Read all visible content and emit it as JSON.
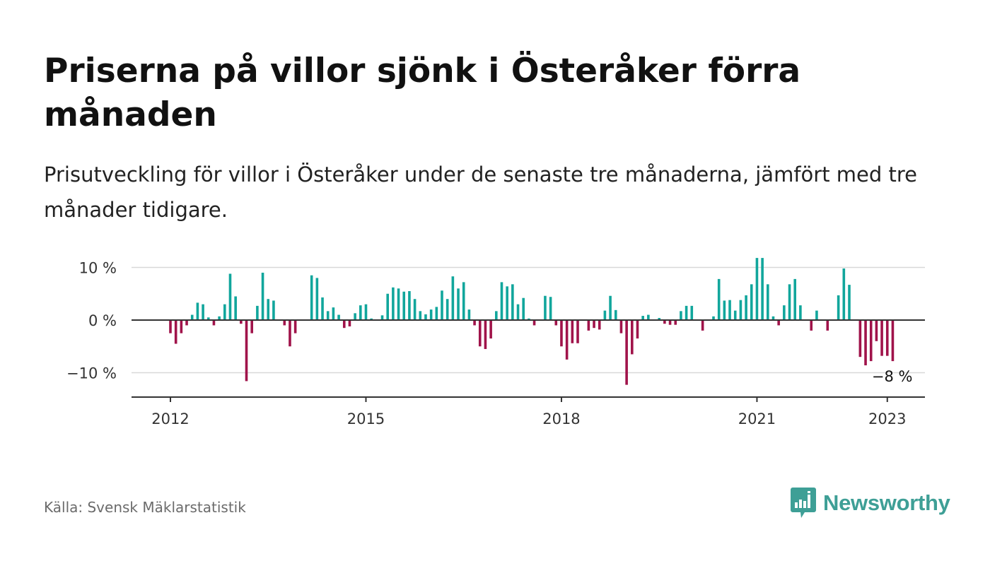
{
  "title": "Priserna på villor sjönk i Österåker förra månaden",
  "subtitle": "Prisutveckling för villor i Österåker under de senaste tre månaderna, jämfört med tre månader tidigare.",
  "source": "Källa: Svensk Mäklarstatistik",
  "brand": {
    "name": "Newsworthy",
    "color": "#3e9f96"
  },
  "colors": {
    "positive": "#11a69c",
    "negative": "#a0134a",
    "grid": "#d8d8d8",
    "axis": "#333333"
  },
  "chart_data": {
    "type": "bar",
    "x_ticks": [
      {
        "label": "2012",
        "value": "2012-01"
      },
      {
        "label": "2015",
        "value": "2015-01"
      },
      {
        "label": "2018",
        "value": "2018-01"
      },
      {
        "label": "2021",
        "value": "2021-01"
      },
      {
        "label": "2023",
        "value": "2023-01"
      }
    ],
    "y_ticks": [
      {
        "label": "10 %",
        "value": 10
      },
      {
        "label": "0 %",
        "value": 0
      },
      {
        "label": "−10 %",
        "value": -10
      }
    ],
    "ylim": [
      -14.5,
      11
    ],
    "xlim": [
      "2011-09",
      "2023-07"
    ],
    "grid": true,
    "last_value_label": "−8 %",
    "series": [
      {
        "unit": "%",
        "points": [
          {
            "x": "2012-01",
            "y": -2.5
          },
          {
            "x": "2012-02",
            "y": -4.5
          },
          {
            "x": "2012-03",
            "y": -2.5
          },
          {
            "x": "2012-04",
            "y": -1
          },
          {
            "x": "2012-05",
            "y": 1
          },
          {
            "x": "2012-06",
            "y": 3.3
          },
          {
            "x": "2012-07",
            "y": 3
          },
          {
            "x": "2012-08",
            "y": 0.5
          },
          {
            "x": "2012-09",
            "y": -1
          },
          {
            "x": "2012-10",
            "y": 0.7
          },
          {
            "x": "2012-11",
            "y": 3
          },
          {
            "x": "2012-12",
            "y": 8.8
          },
          {
            "x": "2013-01",
            "y": 4.5
          },
          {
            "x": "2013-02",
            "y": -0.7
          },
          {
            "x": "2013-03",
            "y": -11.6
          },
          {
            "x": "2013-04",
            "y": -2.5
          },
          {
            "x": "2013-05",
            "y": 2.7
          },
          {
            "x": "2013-06",
            "y": 9
          },
          {
            "x": "2013-07",
            "y": 4
          },
          {
            "x": "2013-08",
            "y": 3.7
          },
          {
            "x": "2013-10",
            "y": -1
          },
          {
            "x": "2013-11",
            "y": -5
          },
          {
            "x": "2013-12",
            "y": -2.5
          },
          {
            "x": "2014-03",
            "y": 8.5
          },
          {
            "x": "2014-04",
            "y": 8
          },
          {
            "x": "2014-05",
            "y": 4.3
          },
          {
            "x": "2014-06",
            "y": 1.7
          },
          {
            "x": "2014-07",
            "y": 2.4
          },
          {
            "x": "2014-08",
            "y": 1
          },
          {
            "x": "2014-09",
            "y": -1.5
          },
          {
            "x": "2014-10",
            "y": -1.2
          },
          {
            "x": "2014-11",
            "y": 1.3
          },
          {
            "x": "2014-12",
            "y": 2.8
          },
          {
            "x": "2015-01",
            "y": 3
          },
          {
            "x": "2015-02",
            "y": 0.3
          },
          {
            "x": "2015-04",
            "y": 0.9
          },
          {
            "x": "2015-05",
            "y": 5
          },
          {
            "x": "2015-06",
            "y": 6.2
          },
          {
            "x": "2015-07",
            "y": 6
          },
          {
            "x": "2015-08",
            "y": 5.4
          },
          {
            "x": "2015-09",
            "y": 5.5
          },
          {
            "x": "2015-10",
            "y": 4
          },
          {
            "x": "2015-11",
            "y": 1.7
          },
          {
            "x": "2015-12",
            "y": 1.1
          },
          {
            "x": "2016-01",
            "y": 2
          },
          {
            "x": "2016-02",
            "y": 2.5
          },
          {
            "x": "2016-03",
            "y": 5.6
          },
          {
            "x": "2016-04",
            "y": 4
          },
          {
            "x": "2016-05",
            "y": 8.3
          },
          {
            "x": "2016-06",
            "y": 6
          },
          {
            "x": "2016-07",
            "y": 7.2
          },
          {
            "x": "2016-08",
            "y": 2
          },
          {
            "x": "2016-09",
            "y": -1
          },
          {
            "x": "2016-10",
            "y": -5
          },
          {
            "x": "2016-11",
            "y": -5.5
          },
          {
            "x": "2016-12",
            "y": -3.5
          },
          {
            "x": "2017-01",
            "y": 1.7
          },
          {
            "x": "2017-02",
            "y": 7.2
          },
          {
            "x": "2017-03",
            "y": 6.4
          },
          {
            "x": "2017-04",
            "y": 6.8
          },
          {
            "x": "2017-05",
            "y": 3
          },
          {
            "x": "2017-06",
            "y": 4.2
          },
          {
            "x": "2017-07",
            "y": 0.3
          },
          {
            "x": "2017-08",
            "y": -1
          },
          {
            "x": "2017-10",
            "y": 4.6
          },
          {
            "x": "2017-11",
            "y": 4.4
          },
          {
            "x": "2017-12",
            "y": -1
          },
          {
            "x": "2018-01",
            "y": -5
          },
          {
            "x": "2018-02",
            "y": -7.5
          },
          {
            "x": "2018-03",
            "y": -4.4
          },
          {
            "x": "2018-04",
            "y": -4.4
          },
          {
            "x": "2018-06",
            "y": -2
          },
          {
            "x": "2018-07",
            "y": -1.5
          },
          {
            "x": "2018-08",
            "y": -1.8
          },
          {
            "x": "2018-09",
            "y": 1.8
          },
          {
            "x": "2018-10",
            "y": 4.6
          },
          {
            "x": "2018-11",
            "y": 1.9
          },
          {
            "x": "2018-12",
            "y": -2.5
          },
          {
            "x": "2019-01",
            "y": -12.3
          },
          {
            "x": "2019-02",
            "y": -6.5
          },
          {
            "x": "2019-03",
            "y": -3.5
          },
          {
            "x": "2019-04",
            "y": 0.8
          },
          {
            "x": "2019-05",
            "y": 1
          },
          {
            "x": "2019-07",
            "y": 0.4
          },
          {
            "x": "2019-08",
            "y": -0.7
          },
          {
            "x": "2019-09",
            "y": -0.9
          },
          {
            "x": "2019-10",
            "y": -0.9
          },
          {
            "x": "2019-11",
            "y": 1.7
          },
          {
            "x": "2019-12",
            "y": 2.7
          },
          {
            "x": "2020-01",
            "y": 2.7
          },
          {
            "x": "2020-03",
            "y": -2
          },
          {
            "x": "2020-05",
            "y": 0.7
          },
          {
            "x": "2020-06",
            "y": 7.8
          },
          {
            "x": "2020-07",
            "y": 3.7
          },
          {
            "x": "2020-08",
            "y": 3.8
          },
          {
            "x": "2020-09",
            "y": 1.8
          },
          {
            "x": "2020-10",
            "y": 3.8
          },
          {
            "x": "2020-11",
            "y": 4.7
          },
          {
            "x": "2020-12",
            "y": 6.8
          },
          {
            "x": "2021-01",
            "y": 11.8
          },
          {
            "x": "2021-02",
            "y": 11.8
          },
          {
            "x": "2021-03",
            "y": 6.8
          },
          {
            "x": "2021-04",
            "y": 0.7
          },
          {
            "x": "2021-05",
            "y": -1
          },
          {
            "x": "2021-06",
            "y": 2.8
          },
          {
            "x": "2021-07",
            "y": 6.8
          },
          {
            "x": "2021-08",
            "y": 7.8
          },
          {
            "x": "2021-09",
            "y": 2.8
          },
          {
            "x": "2021-11",
            "y": -2
          },
          {
            "x": "2021-12",
            "y": 1.8
          },
          {
            "x": "2022-02",
            "y": -2
          },
          {
            "x": "2022-04",
            "y": 4.7
          },
          {
            "x": "2022-05",
            "y": 9.8
          },
          {
            "x": "2022-06",
            "y": 6.7
          },
          {
            "x": "2022-08",
            "y": -7
          },
          {
            "x": "2022-09",
            "y": -8.6
          },
          {
            "x": "2022-10",
            "y": -7.8
          },
          {
            "x": "2022-11",
            "y": -4
          },
          {
            "x": "2022-12",
            "y": -6.8
          },
          {
            "x": "2023-01",
            "y": -6.8
          },
          {
            "x": "2023-02",
            "y": -7.8
          }
        ]
      }
    ]
  }
}
